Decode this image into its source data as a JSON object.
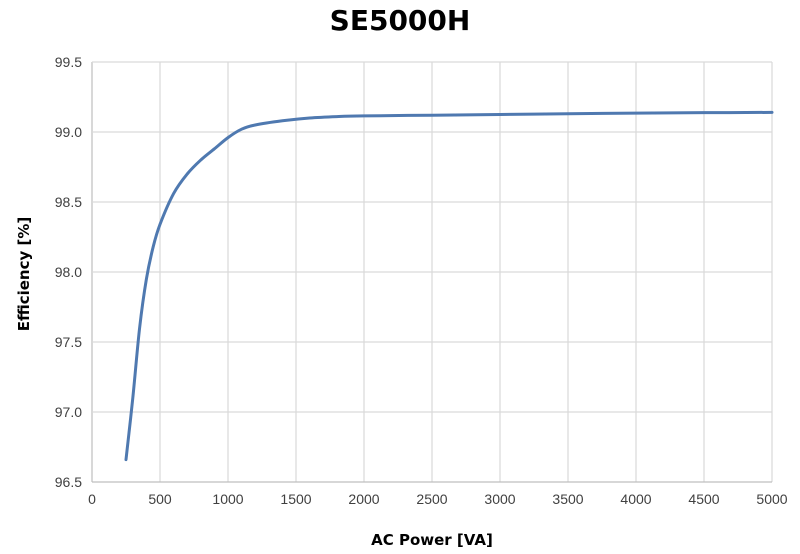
{
  "chart_data": {
    "type": "line",
    "title": "SE5000H",
    "xlabel": "AC Power [VA]",
    "ylabel": "Efficiency [%]",
    "xlim": [
      0,
      5000
    ],
    "ylim": [
      96.5,
      99.5
    ],
    "x_ticks": [
      "0",
      "500",
      "1000",
      "1500",
      "2000",
      "2500",
      "3000",
      "3500",
      "4000",
      "4500",
      "5000"
    ],
    "y_ticks": [
      "96.5",
      "97.0",
      "97.5",
      "98.0",
      "98.5",
      "99.0",
      "99.5"
    ],
    "grid": true,
    "series": [
      {
        "color": "#4f79b0",
        "x": [
          250,
          300,
          350,
          400,
          450,
          500,
          600,
          700,
          800,
          900,
          1000,
          1100,
          1200,
          1400,
          1600,
          1800,
          2000,
          2500,
          3000,
          3500,
          4000,
          4500,
          5000
        ],
        "y": [
          96.66,
          97.1,
          97.6,
          97.95,
          98.18,
          98.34,
          98.56,
          98.7,
          98.8,
          98.88,
          98.96,
          99.02,
          99.05,
          99.08,
          99.1,
          99.11,
          99.115,
          99.12,
          99.125,
          99.13,
          99.135,
          99.138,
          99.14
        ]
      }
    ]
  }
}
